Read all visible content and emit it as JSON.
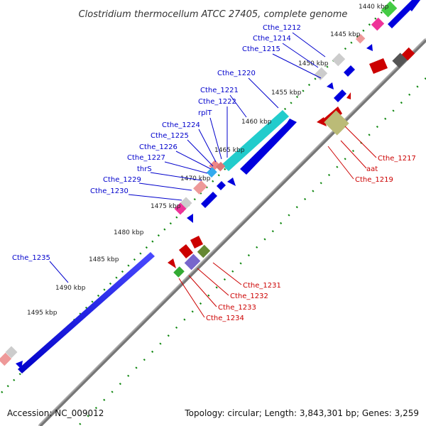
{
  "title": "Clostridium thermocellum ATCC 27405, complete genome",
  "footer": {
    "accession": "Accession: NC_009012",
    "topology": "Topology: circular; Length: 3,843,301 bp; Genes: 3,259"
  },
  "colors": {
    "forward_label": "#0000cc",
    "reverse_label": "#cc0000",
    "tick": "#118811",
    "backbone": "#777777"
  },
  "ticks": [
    {
      "label": "1440 kbp"
    },
    {
      "label": "1445 kbp"
    },
    {
      "label": "1450 kbp"
    },
    {
      "label": "1455 kbp"
    },
    {
      "label": "1460 kbp"
    },
    {
      "label": "1465 kbp"
    },
    {
      "label": "1470 kbp"
    },
    {
      "label": "1475 kbp"
    },
    {
      "label": "1480 kbp"
    },
    {
      "label": "1485 kbp"
    },
    {
      "label": "1490 kbp"
    },
    {
      "label": "1495 kbp"
    }
  ],
  "forward_labels": [
    "Cthe_1212",
    "Cthe_1214",
    "Cthe_1215",
    "Cthe_1220",
    "Cthe_1221",
    "Cthe_1222",
    "rplT",
    "Cthe_1224",
    "Cthe_1225",
    "Cthe_1226",
    "Cthe_1227",
    "thrS",
    "Cthe_1229",
    "Cthe_1230",
    "Cthe_1235"
  ],
  "reverse_labels": [
    "Cthe_1217",
    "aat",
    "Cthe_1219",
    "Cthe_1231",
    "Cthe_1232",
    "Cthe_1233",
    "Cthe_1234"
  ]
}
